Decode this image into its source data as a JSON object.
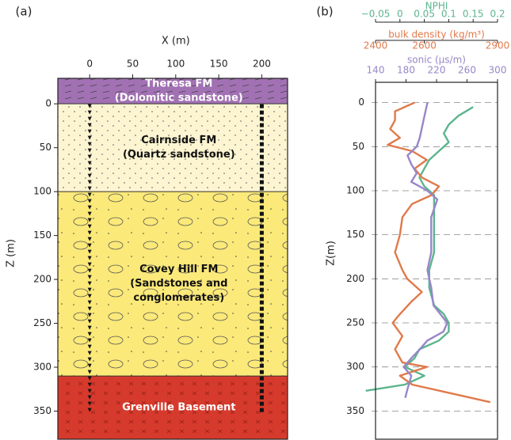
{
  "chart_data": [
    {
      "type": "strata",
      "panel": "(a)",
      "xlabel": "X (m)",
      "ylabel": "Z (m)",
      "xlim": [
        -37,
        230
      ],
      "xticks": [
        0,
        50,
        100,
        150,
        200
      ],
      "ylim": [
        -29,
        382
      ],
      "y_inverted": true,
      "yticks": [
        0,
        50,
        100,
        150,
        200,
        250,
        300,
        350
      ],
      "layers": [
        {
          "label": [
            "Theresa FM",
            "(Dolomitic sandstone)"
          ],
          "top": -29,
          "bottom": 0,
          "color": "#a271b4",
          "label_color": "#ffffff",
          "texture": "dash"
        },
        {
          "label": [
            "Cairnside FM",
            "(Quartz sandstone)"
          ],
          "top": 0,
          "bottom": 100,
          "color": "#fdf5d2",
          "label_color": "#111111",
          "texture": "dots"
        },
        {
          "label": [
            "Covey Hill FM",
            "(Sandstones and",
            "conglomerates)"
          ],
          "top": 100,
          "bottom": 310,
          "color": "#fbe979",
          "label_color": "#111111",
          "texture": "pebbles"
        },
        {
          "label": [
            "Grenville Basement"
          ],
          "top": 310,
          "bottom": 382,
          "color": "#d63a2c",
          "label_color": "#ffffff",
          "texture": "cross"
        }
      ],
      "wells": [
        {
          "x": 0,
          "top": 0,
          "bottom": 350,
          "marker": "triangle"
        },
        {
          "x": 200,
          "top": 0,
          "bottom": 350,
          "marker": "square"
        }
      ]
    },
    {
      "type": "log",
      "panel": "(b)",
      "ylabel": "Z(m)",
      "ylim": [
        -23,
        382
      ],
      "y_inverted": true,
      "yticks": [
        0,
        50,
        100,
        150,
        200,
        250,
        300,
        350
      ],
      "grid": true,
      "logs": [
        {
          "label": "NPHI",
          "color": "#5bb58d",
          "xlim": [
            -0.05,
            0.2
          ],
          "xticks": [
            {
              "value": -0.05,
              "label": "−0.05"
            },
            0,
            0.05,
            0.1,
            0.15,
            0.2
          ],
          "depth": [
            5,
            15,
            25,
            35,
            45,
            55,
            65,
            75,
            85,
            95,
            105,
            115,
            125,
            135,
            150,
            170,
            190,
            210,
            230,
            240,
            250,
            260,
            270,
            280,
            290,
            300,
            310,
            320,
            327
          ],
          "values": [
            0.15,
            0.12,
            0.1,
            0.09,
            0.1,
            0.08,
            0.06,
            0.05,
            0.04,
            0.05,
            0.07,
            0.07,
            0.07,
            0.07,
            0.07,
            0.07,
            0.06,
            0.06,
            0.07,
            0.09,
            0.1,
            0.1,
            0.08,
            0.04,
            0.03,
            0.01,
            0.05,
            0.01,
            -0.07
          ]
        },
        {
          "label": "bulk density (kg/m³)",
          "color": "#e07a4b",
          "xlim": [
            2400,
            2900
          ],
          "xticks": [
            2400,
            2600,
            2900
          ],
          "depth": [
            0,
            10,
            20,
            30,
            40,
            48,
            55,
            65,
            75,
            85,
            95,
            105,
            115,
            130,
            150,
            170,
            190,
            200,
            215,
            225,
            240,
            250,
            265,
            280,
            295,
            300,
            310,
            320,
            330,
            340
          ],
          "values": [
            2560,
            2480,
            2480,
            2460,
            2500,
            2450,
            2550,
            2610,
            2560,
            2590,
            2660,
            2630,
            2550,
            2510,
            2500,
            2480,
            2510,
            2530,
            2590,
            2550,
            2500,
            2470,
            2510,
            2480,
            2510,
            2610,
            2500,
            2550,
            2710,
            2870
          ]
        },
        {
          "label": "sonic (µs/m)",
          "color": "#9886c8",
          "xlim": [
            140,
            300
          ],
          "xticks": [
            140,
            180,
            220,
            260,
            300
          ],
          "depth": [
            0,
            20,
            40,
            50,
            60,
            70,
            80,
            90,
            100,
            110,
            130,
            150,
            170,
            190,
            210,
            230,
            250,
            260,
            270,
            280,
            290,
            300,
            310,
            325,
            335
          ],
          "values": [
            208,
            203,
            198,
            194,
            182,
            187,
            194,
            187,
            208,
            221,
            213,
            213,
            213,
            208,
            213,
            216,
            234,
            229,
            208,
            198,
            187,
            177,
            187,
            182,
            179
          ]
        }
      ]
    }
  ]
}
